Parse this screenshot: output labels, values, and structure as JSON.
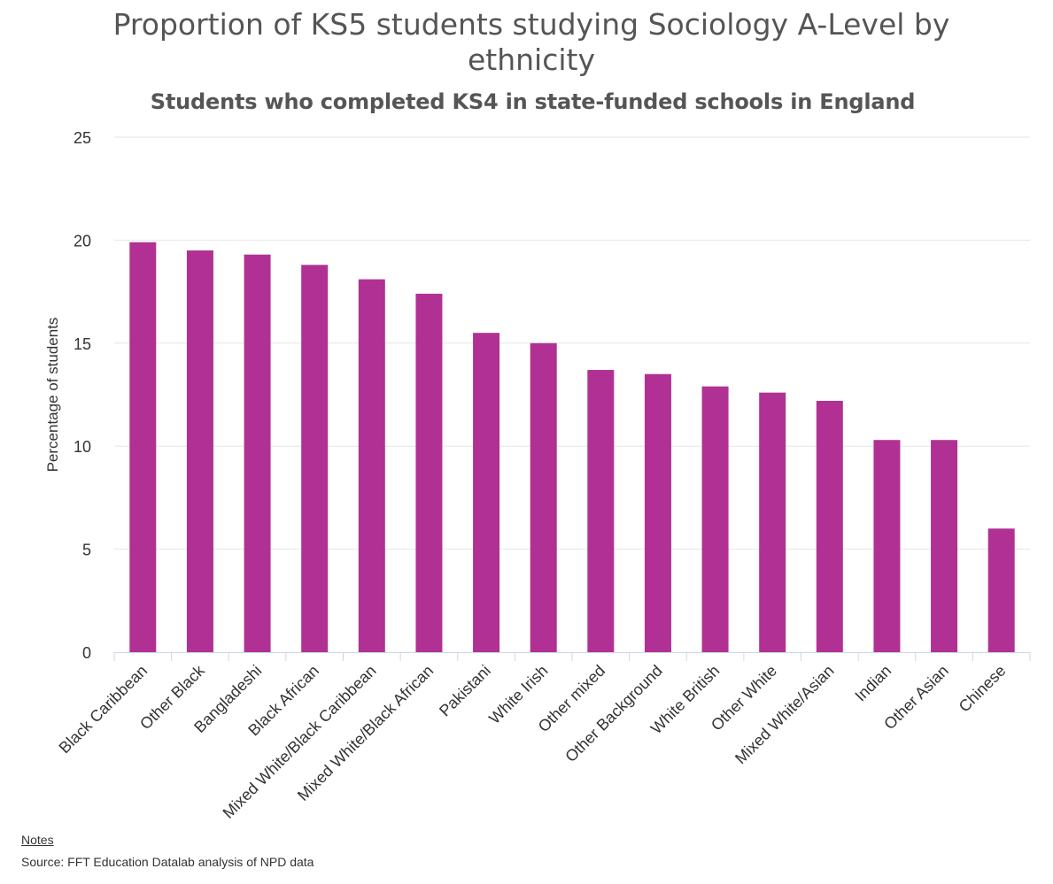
{
  "chart_data": {
    "type": "bar",
    "title": "Proportion of KS5 students studying Sociology A-Level by ethnicity",
    "subtitle": "Students who completed KS4 in state-funded schools in England",
    "ylabel": "Percentage of students",
    "xlabel": "",
    "ylim": [
      0,
      25
    ],
    "yticks": [
      0,
      5,
      10,
      15,
      20,
      25
    ],
    "grid": true,
    "legend": "none",
    "bar_color": "#b03193",
    "categories": [
      "Black Caribbean",
      "Other Black",
      "Bangladeshi",
      "Black African",
      "Mixed White/Black Caribbean",
      "Mixed White/Black African",
      "Pakistani",
      "White Irish",
      "Other mixed",
      "Other Background",
      "White British",
      "Other White",
      "Mixed White/Asian",
      "Indian",
      "Other Asian",
      "Chinese"
    ],
    "values": [
      19.9,
      19.5,
      19.3,
      18.8,
      18.1,
      17.4,
      15.5,
      15.0,
      13.7,
      13.5,
      12.9,
      12.6,
      12.2,
      10.3,
      10.3,
      6.0
    ]
  },
  "footer": {
    "notes_label": "Notes",
    "source": "Source: FFT Education Datalab analysis of NPD data"
  }
}
